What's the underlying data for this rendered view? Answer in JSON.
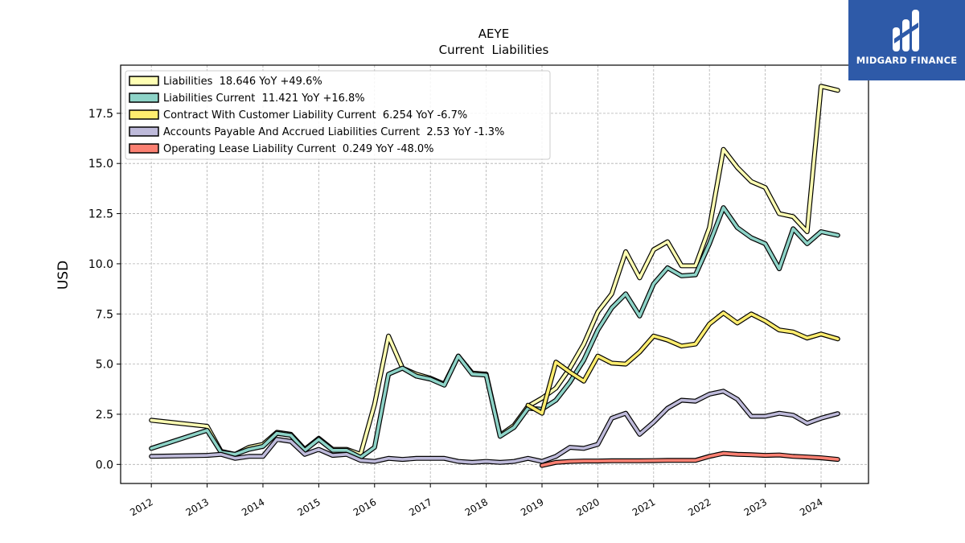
{
  "chart_data": {
    "type": "line",
    "title": "AEYE",
    "subtitle": "Current  Liabilities",
    "ylabel": "USD",
    "xlabel": "",
    "xlim": [
      2011.45,
      2024.85
    ],
    "ylim": [
      -0.95,
      19.9
    ],
    "yticks": [
      0.0,
      2.5,
      5.0,
      7.5,
      10.0,
      12.5,
      15.0,
      17.5
    ],
    "ytick_labels": [
      "0.0",
      "2.5",
      "5.0",
      "7.5",
      "10.0",
      "12.5",
      "15.0",
      "17.5"
    ],
    "xticks": [
      2012,
      2013,
      2014,
      2015,
      2016,
      2017,
      2018,
      2019,
      2020,
      2021,
      2022,
      2023,
      2024
    ],
    "xtick_labels": [
      "2012",
      "2013",
      "2014",
      "2015",
      "2016",
      "2017",
      "2018",
      "2019",
      "2020",
      "2021",
      "2022",
      "2023",
      "2024"
    ],
    "grid": true,
    "legend_position": "top-left",
    "series": [
      {
        "name": "Liabilities",
        "legend_label": "Liabilities  18.646 YoY +49.6%",
        "color": "#ffffb3",
        "points": [
          [
            2012.0,
            2.2
          ],
          [
            2013.0,
            1.9
          ],
          [
            2013.25,
            0.65
          ],
          [
            2013.5,
            0.5
          ],
          [
            2013.75,
            0.85
          ],
          [
            2014.0,
            1.0
          ],
          [
            2014.25,
            1.6
          ],
          [
            2014.5,
            1.5
          ],
          [
            2014.75,
            0.75
          ],
          [
            2015.0,
            1.3
          ],
          [
            2015.25,
            0.75
          ],
          [
            2015.5,
            0.75
          ],
          [
            2015.75,
            0.5
          ],
          [
            2016.0,
            3.0
          ],
          [
            2016.25,
            6.4
          ],
          [
            2016.5,
            4.8
          ],
          [
            2016.75,
            4.5
          ],
          [
            2017.0,
            4.3
          ],
          [
            2017.25,
            4.0
          ],
          [
            2017.5,
            5.4
          ],
          [
            2017.75,
            4.55
          ],
          [
            2018.0,
            4.5
          ],
          [
            2018.25,
            1.45
          ],
          [
            2018.5,
            1.95
          ],
          [
            2018.75,
            2.9
          ],
          [
            2019.0,
            3.3
          ],
          [
            2019.25,
            3.8
          ],
          [
            2019.5,
            4.8
          ],
          [
            2019.75,
            6.0
          ],
          [
            2020.0,
            7.6
          ],
          [
            2020.25,
            8.5
          ],
          [
            2020.5,
            10.6
          ],
          [
            2020.75,
            9.3
          ],
          [
            2021.0,
            10.7
          ],
          [
            2021.25,
            11.1
          ],
          [
            2021.5,
            9.9
          ],
          [
            2021.75,
            9.9
          ],
          [
            2022.0,
            11.8
          ],
          [
            2022.25,
            15.7
          ],
          [
            2022.5,
            14.8
          ],
          [
            2022.75,
            14.1
          ],
          [
            2023.0,
            13.8
          ],
          [
            2023.25,
            12.5
          ],
          [
            2023.5,
            12.35
          ],
          [
            2023.75,
            11.6
          ],
          [
            2024.0,
            18.85
          ],
          [
            2024.3,
            18.646
          ]
        ]
      },
      {
        "name": "Liabilities Current",
        "legend_label": "Liabilities Current  11.421 YoY +16.8%",
        "color": "#8dd3c7",
        "points": [
          [
            2012.0,
            0.8
          ],
          [
            2013.0,
            1.7
          ],
          [
            2013.25,
            0.6
          ],
          [
            2013.5,
            0.5
          ],
          [
            2013.75,
            0.75
          ],
          [
            2014.0,
            0.9
          ],
          [
            2014.25,
            1.55
          ],
          [
            2014.5,
            1.45
          ],
          [
            2014.75,
            0.7
          ],
          [
            2015.0,
            1.25
          ],
          [
            2015.25,
            0.7
          ],
          [
            2015.5,
            0.7
          ],
          [
            2015.75,
            0.35
          ],
          [
            2016.0,
            0.85
          ],
          [
            2016.25,
            4.5
          ],
          [
            2016.5,
            4.8
          ],
          [
            2016.75,
            4.4
          ],
          [
            2017.0,
            4.25
          ],
          [
            2017.25,
            3.95
          ],
          [
            2017.5,
            5.4
          ],
          [
            2017.75,
            4.5
          ],
          [
            2018.0,
            4.45
          ],
          [
            2018.25,
            1.4
          ],
          [
            2018.5,
            1.85
          ],
          [
            2018.75,
            2.8
          ],
          [
            2019.0,
            2.75
          ],
          [
            2019.25,
            3.2
          ],
          [
            2019.5,
            4.1
          ],
          [
            2019.75,
            5.2
          ],
          [
            2020.0,
            6.7
          ],
          [
            2020.25,
            7.8
          ],
          [
            2020.5,
            8.5
          ],
          [
            2020.75,
            7.4
          ],
          [
            2021.0,
            9.0
          ],
          [
            2021.25,
            9.8
          ],
          [
            2021.5,
            9.4
          ],
          [
            2021.75,
            9.45
          ],
          [
            2022.0,
            11.0
          ],
          [
            2022.25,
            12.8
          ],
          [
            2022.5,
            11.8
          ],
          [
            2022.75,
            11.3
          ],
          [
            2023.0,
            11.0
          ],
          [
            2023.25,
            9.75
          ],
          [
            2023.5,
            11.75
          ],
          [
            2023.75,
            11.0
          ],
          [
            2024.0,
            11.6
          ],
          [
            2024.3,
            11.421
          ]
        ]
      },
      {
        "name": "Contract With Customer Liability Current",
        "legend_label": "Contract With Customer Liability Current  6.254 YoY -6.7%",
        "color": "#ffed6f",
        "points": [
          [
            2018.75,
            2.95
          ],
          [
            2019.0,
            2.55
          ],
          [
            2019.25,
            5.1
          ],
          [
            2019.5,
            4.6
          ],
          [
            2019.75,
            4.15
          ],
          [
            2020.0,
            5.4
          ],
          [
            2020.25,
            5.05
          ],
          [
            2020.5,
            5.0
          ],
          [
            2020.75,
            5.6
          ],
          [
            2021.0,
            6.4
          ],
          [
            2021.25,
            6.2
          ],
          [
            2021.5,
            5.9
          ],
          [
            2021.75,
            6.0
          ],
          [
            2022.0,
            7.0
          ],
          [
            2022.25,
            7.55
          ],
          [
            2022.5,
            7.05
          ],
          [
            2022.75,
            7.5
          ],
          [
            2023.0,
            7.15
          ],
          [
            2023.25,
            6.7
          ],
          [
            2023.5,
            6.6
          ],
          [
            2023.75,
            6.3
          ],
          [
            2024.0,
            6.5
          ],
          [
            2024.3,
            6.254
          ]
        ]
      },
      {
        "name": "Accounts Payable And Accrued Liabilities Current",
        "legend_label": "Accounts Payable And Accrued Liabilities Current  2.53 YoY -1.3%",
        "color": "#bebada",
        "points": [
          [
            2012.0,
            0.4
          ],
          [
            2013.0,
            0.45
          ],
          [
            2013.25,
            0.5
          ],
          [
            2013.5,
            0.3
          ],
          [
            2013.75,
            0.4
          ],
          [
            2014.0,
            0.4
          ],
          [
            2014.25,
            1.25
          ],
          [
            2014.5,
            1.15
          ],
          [
            2014.75,
            0.5
          ],
          [
            2015.0,
            0.75
          ],
          [
            2015.25,
            0.45
          ],
          [
            2015.5,
            0.5
          ],
          [
            2015.75,
            0.2
          ],
          [
            2016.0,
            0.15
          ],
          [
            2016.25,
            0.3
          ],
          [
            2016.5,
            0.25
          ],
          [
            2016.75,
            0.3
          ],
          [
            2017.0,
            0.3
          ],
          [
            2017.25,
            0.3
          ],
          [
            2017.5,
            0.15
          ],
          [
            2017.75,
            0.1
          ],
          [
            2018.0,
            0.15
          ],
          [
            2018.25,
            0.1
          ],
          [
            2018.5,
            0.15
          ],
          [
            2018.75,
            0.3
          ],
          [
            2019.0,
            0.15
          ],
          [
            2019.25,
            0.4
          ],
          [
            2019.5,
            0.85
          ],
          [
            2019.75,
            0.8
          ],
          [
            2020.0,
            1.0
          ],
          [
            2020.25,
            2.3
          ],
          [
            2020.5,
            2.55
          ],
          [
            2020.75,
            1.5
          ],
          [
            2021.0,
            2.1
          ],
          [
            2021.25,
            2.8
          ],
          [
            2021.5,
            3.2
          ],
          [
            2021.75,
            3.15
          ],
          [
            2022.0,
            3.5
          ],
          [
            2022.25,
            3.65
          ],
          [
            2022.5,
            3.25
          ],
          [
            2022.75,
            2.4
          ],
          [
            2023.0,
            2.4
          ],
          [
            2023.25,
            2.55
          ],
          [
            2023.5,
            2.45
          ],
          [
            2023.75,
            2.05
          ],
          [
            2024.0,
            2.3
          ],
          [
            2024.3,
            2.53
          ]
        ]
      },
      {
        "name": "Operating Lease Liability Current",
        "legend_label": "Operating Lease Liability Current  0.249 YoY -48.0%",
        "color": "#fb8072",
        "points": [
          [
            2019.0,
            -0.05
          ],
          [
            2019.25,
            0.1
          ],
          [
            2019.5,
            0.15
          ],
          [
            2019.75,
            0.17
          ],
          [
            2020.0,
            0.17
          ],
          [
            2020.25,
            0.18
          ],
          [
            2020.5,
            0.18
          ],
          [
            2020.75,
            0.18
          ],
          [
            2021.0,
            0.19
          ],
          [
            2021.25,
            0.2
          ],
          [
            2021.5,
            0.2
          ],
          [
            2021.75,
            0.2
          ],
          [
            2022.0,
            0.4
          ],
          [
            2022.25,
            0.55
          ],
          [
            2022.5,
            0.5
          ],
          [
            2022.75,
            0.48
          ],
          [
            2023.0,
            0.45
          ],
          [
            2023.25,
            0.47
          ],
          [
            2023.5,
            0.4
          ],
          [
            2023.75,
            0.37
          ],
          [
            2024.0,
            0.33
          ],
          [
            2024.3,
            0.249
          ]
        ]
      }
    ]
  },
  "logo": {
    "text": "MIDGARD FINANCE",
    "background": "#2e5aa8",
    "icon": "midgard-logo-icon"
  }
}
